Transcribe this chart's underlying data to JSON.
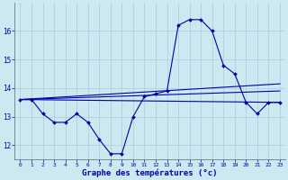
{
  "xlabel": "Graphe des températures (°c)",
  "background_color": "#cce8f0",
  "line_color": "#0000aa",
  "grid_color": "#aaccdd",
  "xlim": [
    -0.5,
    23.5
  ],
  "ylim": [
    11.5,
    17.0
  ],
  "yticks": [
    12,
    13,
    14,
    15,
    16
  ],
  "xticks": [
    0,
    1,
    2,
    3,
    4,
    5,
    6,
    7,
    8,
    9,
    10,
    11,
    12,
    13,
    14,
    15,
    16,
    17,
    18,
    19,
    20,
    21,
    22,
    23
  ],
  "hours": [
    0,
    1,
    2,
    3,
    4,
    5,
    6,
    7,
    8,
    9,
    10,
    11,
    12,
    13,
    14,
    15,
    16,
    17,
    18,
    19,
    20,
    21,
    22,
    23
  ],
  "temps": [
    13.6,
    13.6,
    13.1,
    12.8,
    12.8,
    13.1,
    12.8,
    12.2,
    11.7,
    11.7,
    13.0,
    13.7,
    13.8,
    13.9,
    16.2,
    16.4,
    16.4,
    16.0,
    14.8,
    14.5,
    13.5,
    13.1,
    13.5,
    13.5
  ],
  "trend1": {
    "x": [
      0,
      23
    ],
    "y": [
      13.6,
      13.5
    ]
  },
  "trend2": {
    "x": [
      0,
      23
    ],
    "y": [
      13.6,
      14.15
    ]
  },
  "trend3": {
    "x": [
      0,
      23
    ],
    "y": [
      13.6,
      13.9
    ]
  }
}
